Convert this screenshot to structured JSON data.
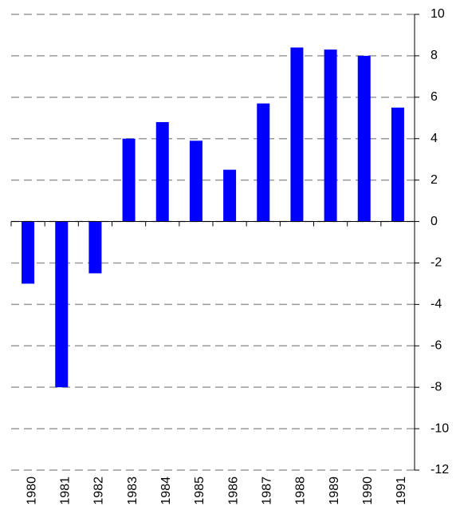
{
  "chart_data": {
    "type": "bar",
    "categories": [
      "1980",
      "1981",
      "1982",
      "1983",
      "1984",
      "1985",
      "1986",
      "1987",
      "1988",
      "1989",
      "1990",
      "1991"
    ],
    "values": [
      -3,
      -8,
      -2.5,
      4,
      4.8,
      3.9,
      2.5,
      5.7,
      8.4,
      8.3,
      8,
      5.5
    ],
    "color": "#0000ff",
    "ylim": [
      -12,
      10
    ],
    "yticks": [
      -12,
      -10,
      -8,
      -6,
      -4,
      -2,
      0,
      2,
      4,
      6,
      8,
      10
    ],
    "grid": true,
    "y_axis_side": "right"
  }
}
